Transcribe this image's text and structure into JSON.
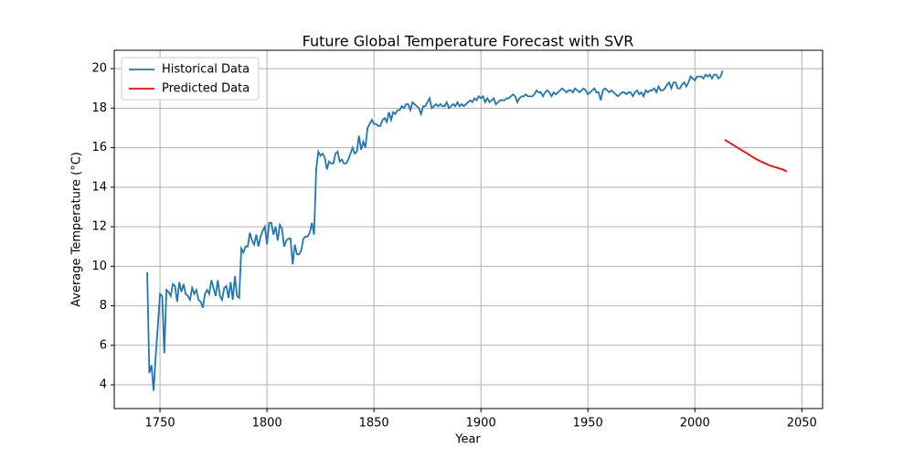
{
  "chart_data": {
    "type": "line",
    "title": "Future Global Temperature Forecast with SVR",
    "x_label": "Year",
    "y_label": "Average Temperature (°C)",
    "xlim": [
      1728.6,
      2059.7
    ],
    "ylim": [
      2.8,
      20.93
    ],
    "xticks": [
      1750,
      1800,
      1850,
      1900,
      1950,
      2000,
      2050
    ],
    "yticks": [
      4,
      6,
      8,
      10,
      12,
      14,
      16,
      18,
      20
    ],
    "grid": true,
    "legend": "upper-left",
    "series": [
      {
        "name": "Historical Data",
        "color": "#1f77b4",
        "x": [
          1744,
          1745,
          1746,
          1747,
          1748,
          1749,
          1750,
          1751,
          1752,
          1753,
          1754,
          1755,
          1756,
          1757,
          1758,
          1759,
          1760,
          1761,
          1762,
          1763,
          1764,
          1765,
          1766,
          1767,
          1768,
          1769,
          1770,
          1771,
          1772,
          1773,
          1774,
          1775,
          1776,
          1777,
          1778,
          1779,
          1780,
          1781,
          1782,
          1783,
          1784,
          1785,
          1786,
          1787,
          1788,
          1789,
          1790,
          1791,
          1792,
          1793,
          1794,
          1795,
          1796,
          1797,
          1798,
          1799,
          1800,
          1801,
          1802,
          1803,
          1804,
          1805,
          1806,
          1807,
          1808,
          1809,
          1810,
          1811,
          1812,
          1813,
          1814,
          1815,
          1816,
          1817,
          1818,
          1819,
          1820,
          1821,
          1822,
          1823,
          1824,
          1825,
          1826,
          1827,
          1828,
          1829,
          1830,
          1831,
          1832,
          1833,
          1834,
          1835,
          1836,
          1837,
          1838,
          1839,
          1840,
          1841,
          1842,
          1843,
          1844,
          1845,
          1846,
          1847,
          1848,
          1849,
          1850,
          1851,
          1852,
          1853,
          1854,
          1855,
          1856,
          1857,
          1858,
          1859,
          1860,
          1861,
          1862,
          1863,
          1864,
          1865,
          1866,
          1867,
          1868,
          1869,
          1870,
          1871,
          1872,
          1873,
          1874,
          1875,
          1876,
          1877,
          1878,
          1879,
          1880,
          1881,
          1882,
          1883,
          1884,
          1885,
          1886,
          1887,
          1888,
          1889,
          1890,
          1891,
          1892,
          1893,
          1894,
          1895,
          1896,
          1897,
          1898,
          1899,
          1900,
          1901,
          1902,
          1903,
          1904,
          1905,
          1906,
          1907,
          1908,
          1909,
          1910,
          1911,
          1912,
          1913,
          1914,
          1915,
          1916,
          1917,
          1918,
          1919,
          1920,
          1921,
          1922,
          1923,
          1924,
          1925,
          1926,
          1927,
          1928,
          1929,
          1930,
          1931,
          1932,
          1933,
          1934,
          1935,
          1936,
          1937,
          1938,
          1939,
          1940,
          1941,
          1942,
          1943,
          1944,
          1945,
          1946,
          1947,
          1948,
          1949,
          1950,
          1951,
          1952,
          1953,
          1954,
          1955,
          1956,
          1957,
          1958,
          1959,
          1960,
          1961,
          1962,
          1963,
          1964,
          1965,
          1966,
          1967,
          1968,
          1969,
          1970,
          1971,
          1972,
          1973,
          1974,
          1975,
          1976,
          1977,
          1978,
          1979,
          1980,
          1981,
          1982,
          1983,
          1984,
          1985,
          1986,
          1987,
          1988,
          1989,
          1990,
          1991,
          1992,
          1993,
          1994,
          1995,
          1996,
          1997,
          1998,
          1999,
          2000,
          2001,
          2002,
          2003,
          2004,
          2005,
          2006,
          2007,
          2008,
          2009,
          2010,
          2011,
          2012,
          2013
        ],
        "values": [
          9.7,
          4.6,
          5.0,
          3.7,
          5.5,
          7.0,
          8.6,
          8.5,
          5.6,
          8.8,
          8.7,
          8.5,
          9.1,
          9.0,
          8.2,
          9.2,
          8.7,
          9.1,
          8.6,
          8.5,
          8.3,
          8.9,
          8.6,
          8.8,
          8.3,
          8.2,
          7.9,
          8.6,
          8.8,
          8.6,
          9.3,
          8.9,
          8.5,
          9.3,
          8.5,
          8.3,
          8.9,
          9.0,
          8.4,
          9.2,
          8.3,
          9.5,
          8.5,
          8.4,
          10.9,
          10.7,
          11.0,
          11.0,
          11.7,
          11.3,
          11.1,
          11.6,
          11.0,
          11.5,
          11.8,
          12.0,
          11.1,
          12.2,
          12.2,
          11.6,
          12.0,
          11.3,
          12.1,
          11.9,
          11.0,
          11.3,
          11.4,
          11.4,
          10.1,
          11.1,
          10.6,
          10.6,
          10.8,
          11.4,
          11.5,
          11.5,
          11.7,
          12.2,
          11.6,
          14.9,
          15.8,
          15.6,
          15.7,
          15.5,
          14.9,
          15.3,
          15.2,
          15.2,
          15.7,
          15.8,
          15.3,
          15.4,
          15.2,
          15.2,
          15.4,
          15.7,
          16.0,
          15.7,
          15.8,
          16.6,
          15.9,
          16.3,
          16.0,
          17.0,
          17.2,
          17.4,
          17.2,
          17.2,
          17.1,
          17.1,
          17.4,
          17.5,
          17.3,
          17.8,
          17.4,
          17.8,
          17.7,
          17.9,
          17.9,
          18.1,
          18.0,
          18.2,
          18.2,
          17.9,
          18.3,
          18.2,
          18.1,
          18.0,
          17.7,
          18.1,
          18.1,
          18.3,
          18.5,
          18.0,
          18.1,
          18.2,
          18.1,
          18.2,
          18.1,
          18.1,
          18.3,
          18.0,
          18.1,
          18.2,
          18.1,
          18.3,
          18.1,
          18.2,
          18.1,
          18.2,
          18.3,
          18.4,
          18.3,
          18.5,
          18.4,
          18.6,
          18.5,
          18.6,
          18.3,
          18.5,
          18.3,
          18.4,
          18.5,
          18.2,
          18.3,
          18.4,
          18.4,
          18.4,
          18.5,
          18.5,
          18.6,
          18.7,
          18.6,
          18.3,
          18.5,
          18.6,
          18.6,
          18.7,
          18.6,
          18.6,
          18.6,
          18.7,
          18.9,
          18.8,
          18.8,
          18.6,
          18.8,
          18.9,
          18.8,
          18.6,
          18.8,
          18.7,
          18.8,
          18.9,
          19.0,
          18.9,
          18.8,
          18.9,
          18.9,
          18.8,
          19.0,
          18.9,
          18.8,
          18.9,
          19.0,
          18.9,
          18.7,
          18.8,
          18.9,
          19.0,
          18.8,
          18.8,
          18.4,
          18.9,
          19.0,
          18.9,
          18.8,
          18.9,
          18.8,
          18.7,
          18.6,
          18.7,
          18.8,
          18.8,
          18.7,
          18.8,
          18.8,
          18.6,
          18.8,
          18.9,
          18.7,
          18.8,
          18.6,
          18.9,
          18.8,
          18.9,
          18.9,
          19.0,
          18.8,
          19.1,
          18.9,
          18.9,
          19.0,
          19.2,
          19.3,
          19.0,
          19.3,
          19.3,
          19.0,
          19.0,
          19.2,
          19.3,
          19.1,
          19.3,
          19.6,
          19.5,
          19.4,
          19.6,
          19.6,
          19.6,
          19.5,
          19.7,
          19.6,
          19.7,
          19.5,
          19.7,
          19.7,
          19.5,
          19.6,
          19.9
        ]
      },
      {
        "name": "Predicted Data",
        "color": "#ff0000",
        "x": [
          2014,
          2017,
          2020,
          2023,
          2026,
          2029,
          2032,
          2035,
          2038,
          2041,
          2043
        ],
        "values": [
          16.4,
          16.2,
          16.0,
          15.8,
          15.6,
          15.4,
          15.25,
          15.1,
          15.0,
          14.9,
          14.8
        ]
      }
    ]
  }
}
